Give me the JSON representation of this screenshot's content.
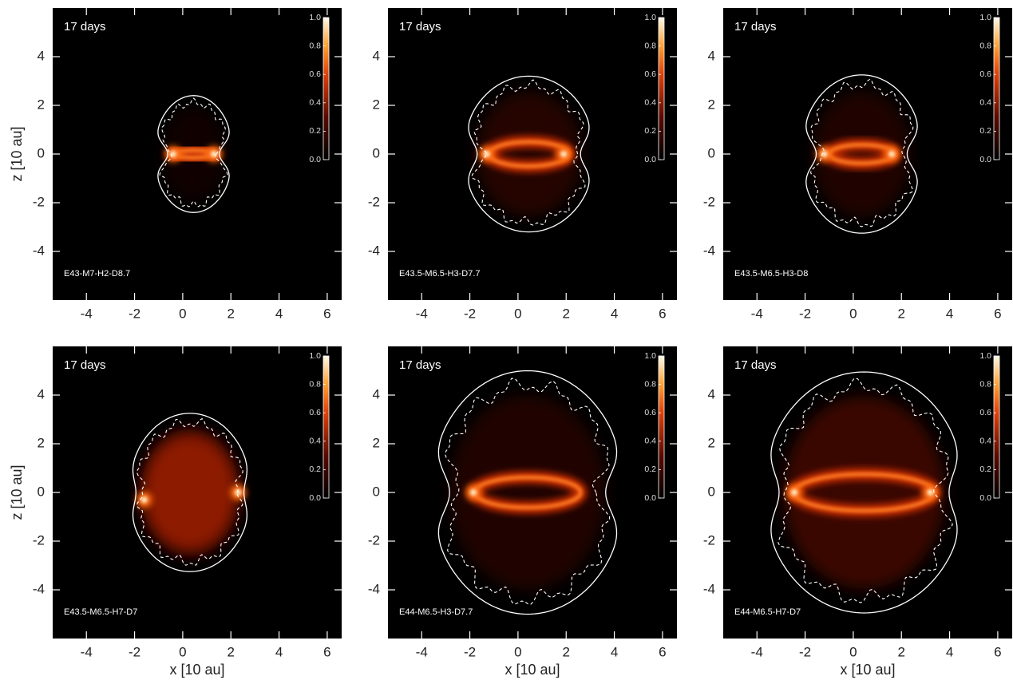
{
  "chart_data": [
    {
      "type": "heatmap",
      "annotation": "17 days",
      "model": "E43-M7-H2-D8.7",
      "ylabel": "z [10 au]",
      "xlim": [
        -5.4,
        6.6
      ],
      "ylim": [
        -6,
        6
      ],
      "xticks": [
        -4,
        -2,
        0,
        2,
        4,
        6
      ],
      "yticks": [
        -4,
        -2,
        0,
        2,
        4
      ],
      "colorbar": {
        "ylim": [
          0,
          1
        ],
        "ticks": [
          {
            "value": 0,
            "label": "0.0"
          },
          0.2,
          0.4,
          0.6,
          0.8,
          {
            "value": 1,
            "label": "1.0"
          }
        ]
      }
    },
    {
      "type": "heatmap",
      "annotation": "17 days",
      "model": "E43.5-M6.5-H3-D7.7",
      "xlim": [
        -5.4,
        6.6
      ],
      "ylim": [
        -6,
        6
      ],
      "xticks": [
        -4,
        -2,
        0,
        2,
        4,
        6
      ],
      "yticks": [
        -4,
        -2,
        0,
        2,
        4
      ],
      "colorbar": {
        "ylim": [
          0,
          1
        ],
        "ticks": [
          {
            "value": 0,
            "label": "0.0"
          },
          0.2,
          0.4,
          0.6,
          0.8,
          {
            "value": 1,
            "label": "1.0"
          }
        ]
      }
    },
    {
      "type": "heatmap",
      "annotation": "17 days",
      "model": "E43.5-M6.5-H3-D8",
      "xlim": [
        -5.4,
        6.6
      ],
      "ylim": [
        -6,
        6
      ],
      "xticks": [
        -4,
        -2,
        0,
        2,
        4,
        6
      ],
      "yticks": [
        -4,
        -2,
        0,
        2,
        4
      ],
      "colorbar": {
        "ylim": [
          0,
          1
        ],
        "ticks": [
          {
            "value": 0,
            "label": "0.0"
          },
          0.2,
          0.4,
          0.6,
          0.8,
          {
            "value": 1,
            "label": "1.0"
          }
        ]
      }
    },
    {
      "type": "heatmap",
      "annotation": "17 days",
      "model": "E43.5-M6.5-H7-D7",
      "xlabel": "x [10 au]",
      "ylabel": "z [10 au]",
      "xlim": [
        -5.4,
        6.6
      ],
      "ylim": [
        -6,
        6
      ],
      "xticks": [
        -4,
        -2,
        0,
        2,
        4,
        6
      ],
      "yticks": [
        -4,
        -2,
        0,
        2,
        4
      ],
      "colorbar": {
        "ylim": [
          0,
          1
        ],
        "ticks": [
          {
            "value": 0,
            "label": "0.0"
          },
          0.2,
          0.4,
          0.6,
          0.8,
          {
            "value": 1,
            "label": "1.0"
          }
        ]
      }
    },
    {
      "type": "heatmap",
      "annotation": "17 days",
      "model": "E44-M6.5-H3-D7.7",
      "xlabel": "x [10 au]",
      "xlim": [
        -5.4,
        6.6
      ],
      "ylim": [
        -6,
        6
      ],
      "xticks": [
        -4,
        -2,
        0,
        2,
        4,
        6
      ],
      "yticks": [
        -4,
        -2,
        0,
        2,
        4
      ],
      "colorbar": {
        "ylim": [
          0,
          1
        ],
        "ticks": [
          {
            "value": 0,
            "label": "0.0"
          },
          0.2,
          0.4,
          0.6,
          0.8,
          {
            "value": 1,
            "label": "1.0"
          }
        ]
      }
    },
    {
      "type": "heatmap",
      "annotation": "17 days",
      "model": "E44-M6.5-H7-D7",
      "xlabel": "x [10 au]",
      "xlim": [
        -5.4,
        6.6
      ],
      "ylim": [
        -6,
        6
      ],
      "xticks": [
        -4,
        -2,
        0,
        2,
        4,
        6
      ],
      "yticks": [
        -4,
        -2,
        0,
        2,
        4
      ],
      "colorbar": {
        "ylim": [
          0,
          1
        ],
        "ticks": [
          {
            "value": 0,
            "label": "0.0"
          },
          0.2,
          0.4,
          0.6,
          0.8,
          {
            "value": 1,
            "label": "1.0"
          }
        ]
      }
    }
  ]
}
